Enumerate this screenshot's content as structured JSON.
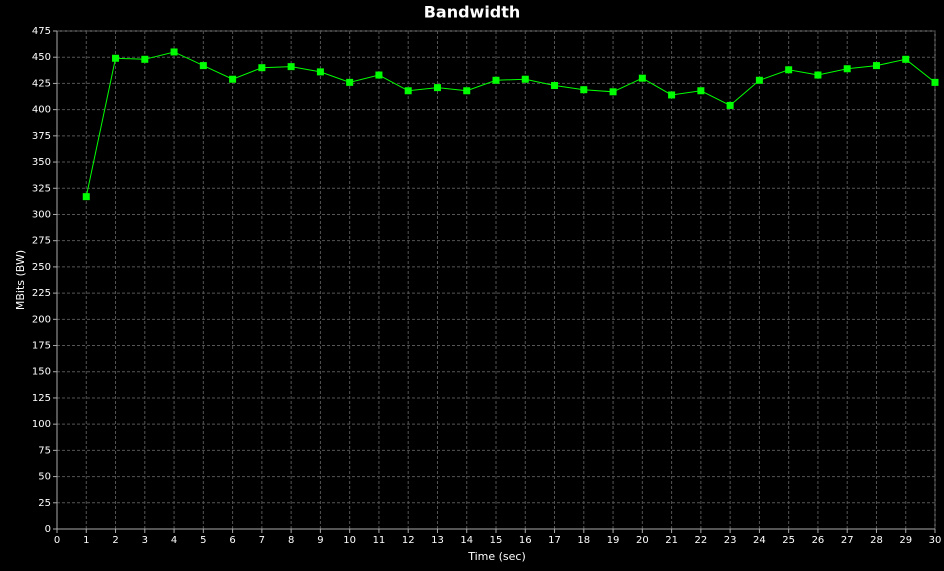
{
  "chart_data": {
    "type": "line",
    "title": "Bandwidth",
    "x_label": "Time (sec)",
    "y_label": "MBits (BW)",
    "x": [
      1,
      2,
      3,
      4,
      5,
      6,
      7,
      8,
      9,
      10,
      11,
      12,
      13,
      14,
      15,
      16,
      17,
      18,
      19,
      20,
      21,
      22,
      23,
      24,
      25,
      26,
      27,
      28,
      29,
      30
    ],
    "series": [
      {
        "name": "BW",
        "color": "#00ff00",
        "values": [
          317,
          449,
          448,
          455,
          442,
          429,
          440,
          441,
          436,
          426,
          433,
          418,
          421,
          418,
          428,
          429,
          423,
          419,
          417,
          430,
          414,
          418,
          404,
          428,
          438,
          433,
          439,
          442,
          448,
          426
        ]
      }
    ],
    "xlim": [
      0,
      30
    ],
    "xticks": [
      0,
      1,
      2,
      3,
      4,
      5,
      6,
      7,
      8,
      9,
      10,
      11,
      12,
      13,
      14,
      15,
      16,
      17,
      18,
      19,
      20,
      21,
      22,
      23,
      24,
      25,
      26,
      27,
      28,
      29,
      30
    ],
    "ylim": [
      0,
      475
    ],
    "yticks": [
      0,
      25,
      50,
      75,
      100,
      125,
      150,
      175,
      200,
      225,
      250,
      275,
      300,
      325,
      350,
      375,
      400,
      425,
      450,
      475
    ],
    "grid": true
  }
}
